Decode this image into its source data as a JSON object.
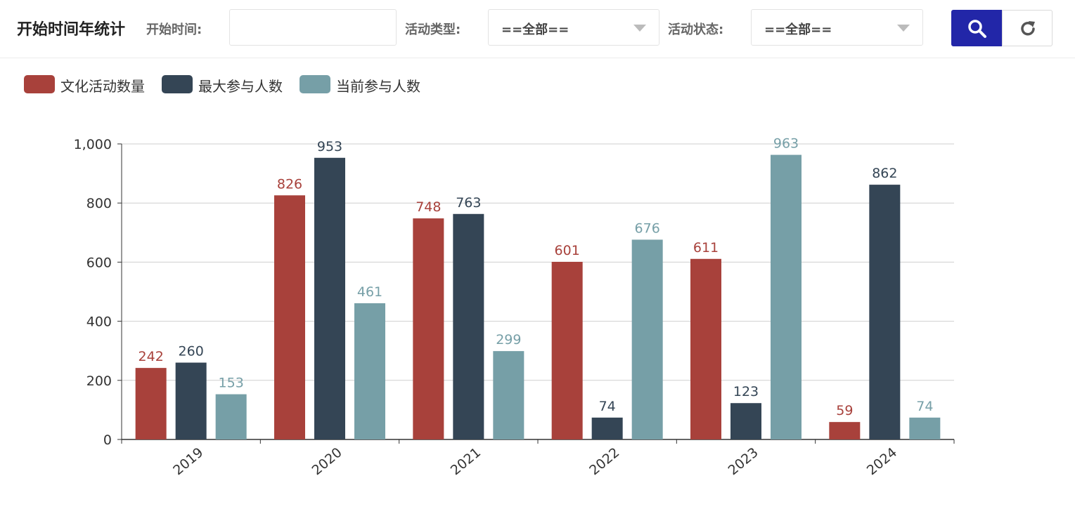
{
  "header": {
    "title": "开始时间年统计",
    "filters": [
      {
        "label": "开始时间:",
        "value": ""
      },
      {
        "label": "活动类型:",
        "value": "==全部=="
      },
      {
        "label": "活动状态:",
        "value": "==全部=="
      }
    ]
  },
  "colors": {
    "series1": "#a8413b",
    "series2": "#344555",
    "series3": "#769fa7",
    "search_button": "#2226a8"
  },
  "icons": {
    "search": "search-icon",
    "reset": "refresh-icon",
    "dropdown": "chevron-down-icon"
  },
  "chart_data": {
    "type": "bar",
    "categories": [
      "2019",
      "2020",
      "2021",
      "2022",
      "2023",
      "2024"
    ],
    "series": [
      {
        "name": "文化活动数量",
        "values": [
          242,
          826,
          748,
          601,
          611,
          59
        ]
      },
      {
        "name": "最大参与人数",
        "values": [
          260,
          953,
          763,
          74,
          123,
          862
        ]
      },
      {
        "name": "当前参与人数",
        "values": [
          153,
          461,
          299,
          676,
          963,
          74
        ]
      }
    ],
    "yticks": [
      "0",
      "200",
      "400",
      "600",
      "800",
      "1,000"
    ],
    "ylim": [
      0,
      1000
    ],
    "grid": true,
    "legend": "top-left",
    "data_labels": true
  }
}
